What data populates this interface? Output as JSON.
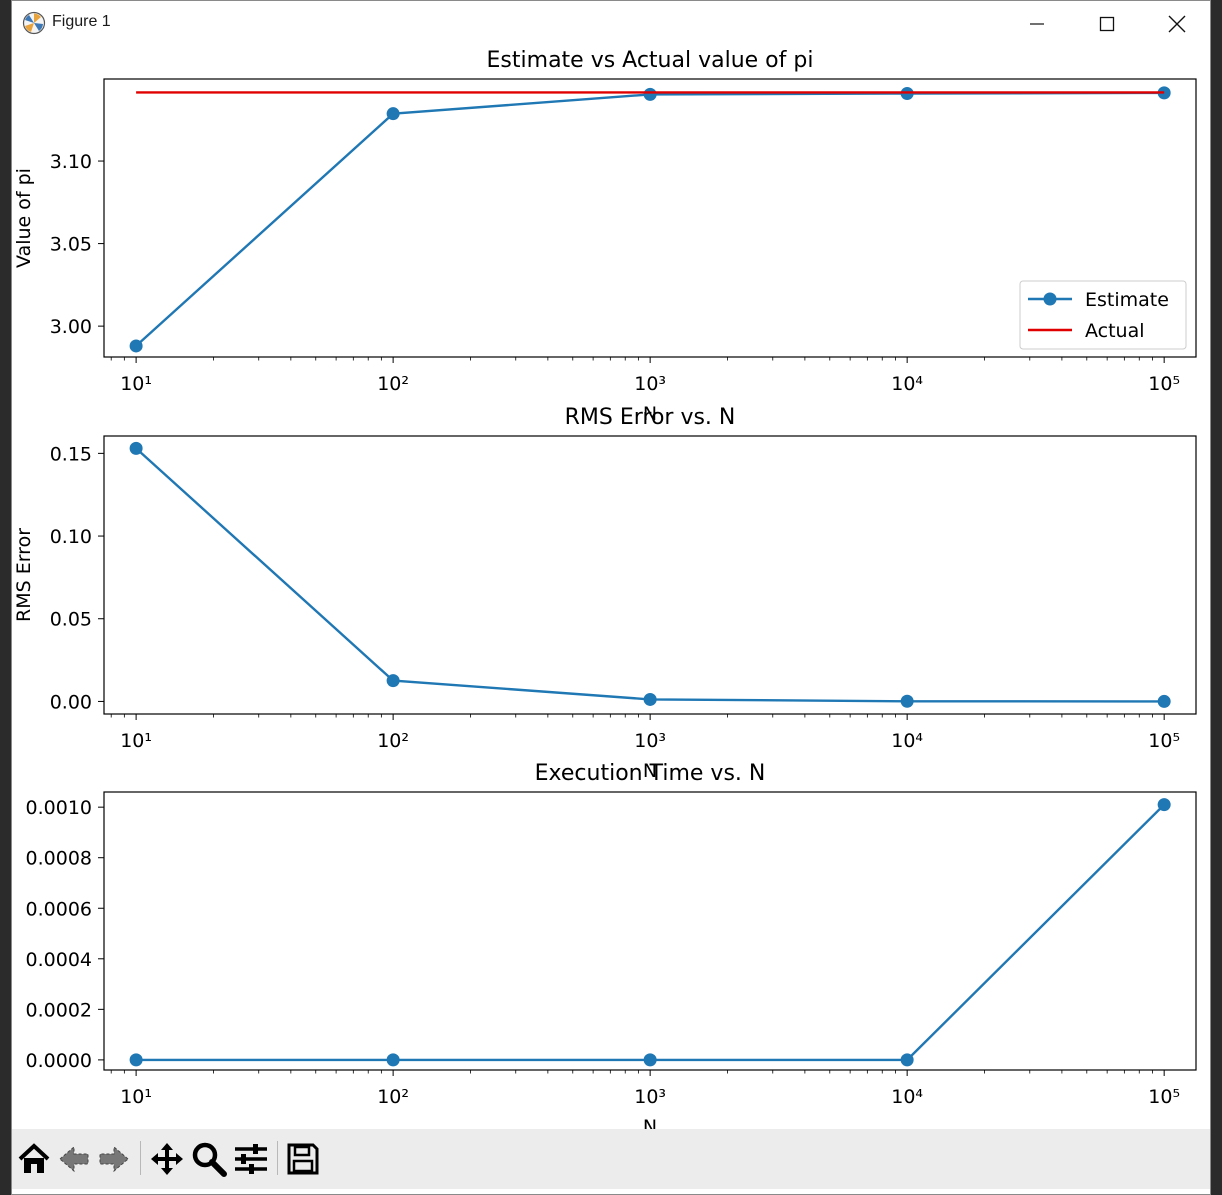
{
  "window": {
    "title": "Figure 1"
  },
  "toolbar": {
    "buttons": [
      "home-icon",
      "back-icon",
      "forward-icon",
      "pan-icon",
      "zoom-icon",
      "configure-subplots-icon",
      "save-icon"
    ]
  },
  "colors": {
    "series": "#1f77b4",
    "actual": "#e00000",
    "axis": "#000000"
  },
  "chart_data": [
    {
      "type": "line",
      "title": "Estimate vs Actual value of pi",
      "xlabel": "N",
      "ylabel": "Value of pi",
      "xscale": "log",
      "xlim": [
        7.5,
        133000
      ],
      "ylim": [
        2.9813,
        3.1497
      ],
      "xticks": [
        10,
        100,
        1000,
        10000,
        100000
      ],
      "yticks": [
        3.0,
        3.05,
        3.1
      ],
      "ytick_labels": [
        "3.00",
        "3.05",
        "3.10"
      ],
      "legend": "lower-right",
      "series": [
        {
          "name": "Estimate",
          "marker": "o",
          "color": "#1f77b4",
          "x": [
            10,
            100,
            1000,
            10000,
            100000
          ],
          "y": [
            2.988,
            3.1287,
            3.1404,
            3.1409,
            3.1413
          ]
        },
        {
          "name": "Actual",
          "marker": "none",
          "color": "#e00000",
          "x": [
            10,
            100000
          ],
          "y": [
            3.1416,
            3.1416
          ]
        }
      ]
    },
    {
      "type": "line",
      "title": "RMS Error vs. N",
      "xlabel": "N",
      "ylabel": "RMS Error",
      "xscale": "log",
      "xlim": [
        7.5,
        133000
      ],
      "ylim": [
        -0.0076,
        0.1605
      ],
      "xticks": [
        10,
        100,
        1000,
        10000,
        100000
      ],
      "yticks": [
        0.0,
        0.05,
        0.1,
        0.15
      ],
      "ytick_labels": [
        "0.00",
        "0.05",
        "0.10",
        "0.15"
      ],
      "series": [
        {
          "marker": "o",
          "color": "#1f77b4",
          "x": [
            10,
            100,
            1000,
            10000,
            100000
          ],
          "y": [
            0.153,
            0.0126,
            0.0012,
            0.0001,
            0.0
          ]
        }
      ]
    },
    {
      "type": "line",
      "title": "Execution Time vs. N",
      "xlabel": "N",
      "ylabel": "",
      "xscale": "log",
      "xlim": [
        7.5,
        133000
      ],
      "ylim": [
        -4e-05,
        0.00106
      ],
      "xticks": [
        10,
        100,
        1000,
        10000,
        100000
      ],
      "yticks": [
        0.0,
        0.0002,
        0.0004,
        0.0006,
        0.0008,
        0.001
      ],
      "ytick_labels": [
        "0.0000",
        "0.0002",
        "0.0004",
        "0.0006",
        "0.0008",
        "0.0010"
      ],
      "series": [
        {
          "marker": "o",
          "color": "#1f77b4",
          "x": [
            10,
            100,
            1000,
            10000,
            100000
          ],
          "y": [
            0.0,
            0.0,
            0.0,
            0.0,
            0.00101
          ]
        }
      ]
    }
  ]
}
